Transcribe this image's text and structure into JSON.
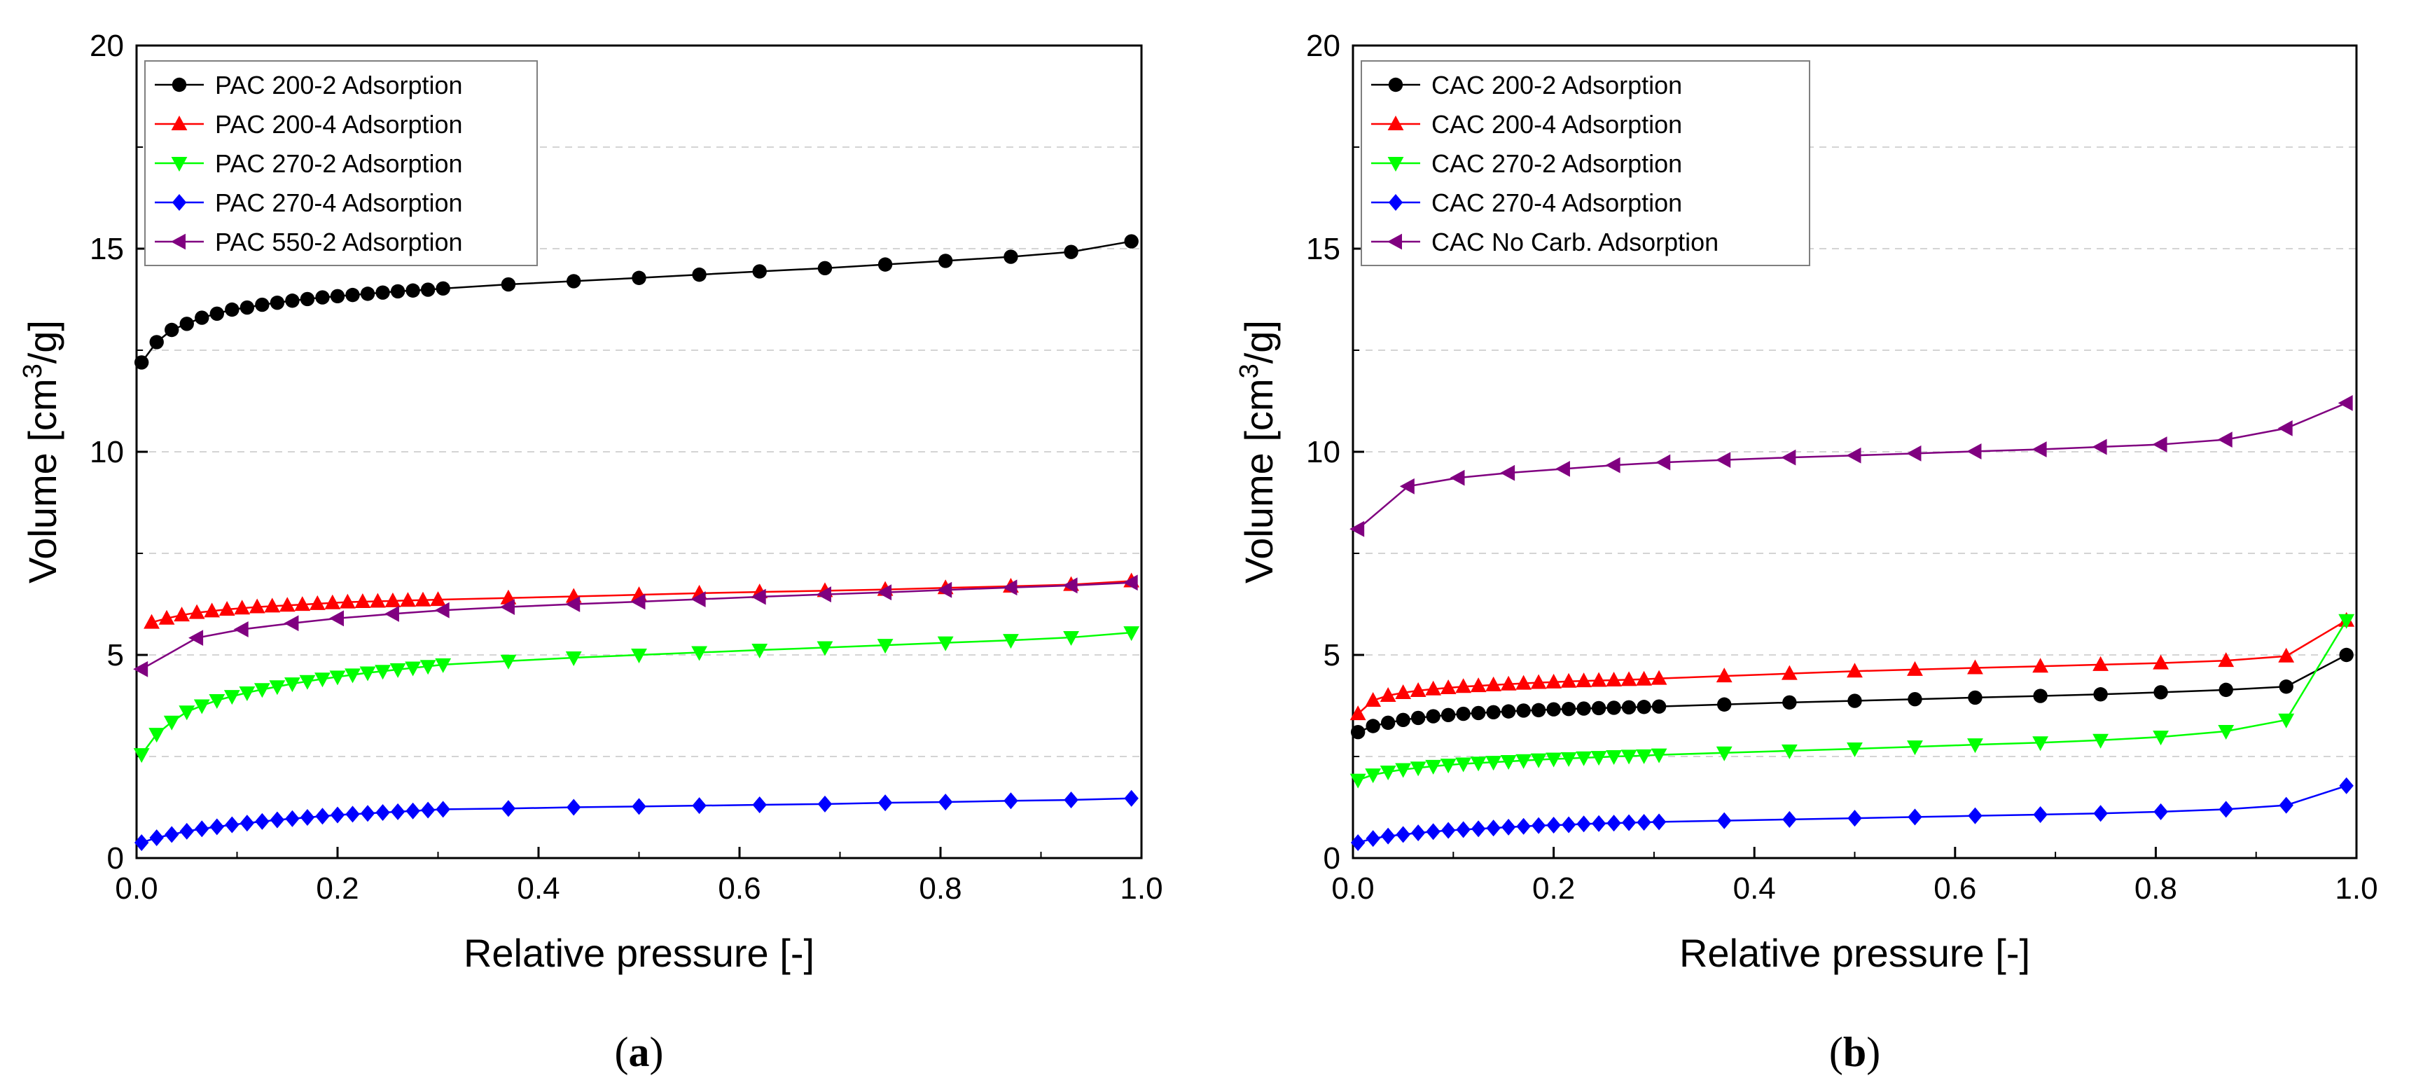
{
  "figure": {
    "panels": [
      "a",
      "b"
    ]
  },
  "chart_data": [
    {
      "type": "line",
      "panel_label": "a",
      "title": "",
      "xlabel": "Relative pressure [-]",
      "ylabel_main": "Volume [cm",
      "ylabel_sup": "3",
      "ylabel_end": "/g]",
      "xlim": [
        0,
        1.0
      ],
      "ylim": [
        0,
        20
      ],
      "xticks": [
        "0.0",
        "0.2",
        "0.4",
        "0.6",
        "0.8",
        "1.0"
      ],
      "yticks": [
        "0",
        "5",
        "10",
        "15",
        "20"
      ],
      "grid": true,
      "legend_position": "top-left",
      "x": [
        0.005,
        0.02,
        0.035,
        0.05,
        0.065,
        0.08,
        0.095,
        0.11,
        0.125,
        0.14,
        0.155,
        0.17,
        0.185,
        0.2,
        0.215,
        0.23,
        0.245,
        0.26,
        0.275,
        0.29,
        0.305,
        0.37,
        0.435,
        0.5,
        0.56,
        0.62,
        0.685,
        0.745,
        0.805,
        0.87,
        0.93,
        0.99
      ],
      "series": [
        {
          "name": "PAC 200-2 Adsorption",
          "color": "#000000",
          "marker": "circle",
          "x": [
            0.005,
            0.02,
            0.035,
            0.05,
            0.065,
            0.08,
            0.095,
            0.11,
            0.125,
            0.14,
            0.155,
            0.17,
            0.185,
            0.2,
            0.215,
            0.23,
            0.245,
            0.26,
            0.275,
            0.29,
            0.305,
            0.37,
            0.435,
            0.5,
            0.56,
            0.62,
            0.685,
            0.745,
            0.805,
            0.87,
            0.93,
            0.99
          ],
          "values": [
            12.2,
            12.7,
            13.0,
            13.15,
            13.3,
            13.4,
            13.5,
            13.55,
            13.62,
            13.67,
            13.72,
            13.76,
            13.8,
            13.83,
            13.86,
            13.89,
            13.92,
            13.95,
            13.97,
            13.99,
            14.02,
            14.12,
            14.2,
            14.28,
            14.36,
            14.44,
            14.52,
            14.61,
            14.7,
            14.8,
            14.92,
            15.18
          ]
        },
        {
          "name": "PAC 200-4 Adsorption",
          "color": "#ff0000",
          "marker": "triangle-up",
          "x": [
            0.015,
            0.03,
            0.045,
            0.06,
            0.075,
            0.09,
            0.105,
            0.12,
            0.135,
            0.15,
            0.165,
            0.18,
            0.195,
            0.21,
            0.225,
            0.24,
            0.255,
            0.27,
            0.285,
            0.3,
            0.37,
            0.435,
            0.5,
            0.56,
            0.62,
            0.685,
            0.745,
            0.805,
            0.87,
            0.93,
            0.99
          ],
          "values": [
            5.8,
            5.9,
            5.98,
            6.04,
            6.08,
            6.12,
            6.15,
            6.18,
            6.2,
            6.22,
            6.24,
            6.26,
            6.28,
            6.3,
            6.31,
            6.32,
            6.33,
            6.34,
            6.35,
            6.36,
            6.4,
            6.44,
            6.48,
            6.52,
            6.55,
            6.58,
            6.61,
            6.65,
            6.69,
            6.73,
            6.82
          ]
        },
        {
          "name": "PAC 270-2 Adsorption",
          "color": "#00ff00",
          "marker": "triangle-down",
          "x": [
            0.005,
            0.02,
            0.035,
            0.05,
            0.065,
            0.08,
            0.095,
            0.11,
            0.125,
            0.14,
            0.155,
            0.17,
            0.185,
            0.2,
            0.215,
            0.23,
            0.245,
            0.26,
            0.275,
            0.29,
            0.305,
            0.37,
            0.435,
            0.5,
            0.56,
            0.62,
            0.685,
            0.745,
            0.805,
            0.87,
            0.93,
            0.99
          ],
          "values": [
            2.55,
            3.05,
            3.35,
            3.6,
            3.75,
            3.88,
            3.98,
            4.07,
            4.15,
            4.22,
            4.29,
            4.35,
            4.41,
            4.46,
            4.51,
            4.56,
            4.6,
            4.64,
            4.68,
            4.72,
            4.76,
            4.85,
            4.93,
            5.0,
            5.06,
            5.12,
            5.18,
            5.24,
            5.3,
            5.36,
            5.43,
            5.55
          ]
        },
        {
          "name": "PAC 270-4 Adsorption",
          "color": "#0000ff",
          "marker": "diamond",
          "x": [
            0.005,
            0.02,
            0.035,
            0.05,
            0.065,
            0.08,
            0.095,
            0.11,
            0.125,
            0.14,
            0.155,
            0.17,
            0.185,
            0.2,
            0.215,
            0.23,
            0.245,
            0.26,
            0.275,
            0.29,
            0.305,
            0.37,
            0.435,
            0.5,
            0.56,
            0.62,
            0.685,
            0.745,
            0.805,
            0.87,
            0.93,
            0.99
          ],
          "values": [
            0.38,
            0.5,
            0.58,
            0.66,
            0.72,
            0.77,
            0.82,
            0.86,
            0.9,
            0.94,
            0.97,
            1.0,
            1.03,
            1.06,
            1.08,
            1.1,
            1.12,
            1.14,
            1.16,
            1.18,
            1.2,
            1.22,
            1.25,
            1.27,
            1.29,
            1.31,
            1.33,
            1.36,
            1.38,
            1.41,
            1.43,
            1.47
          ]
        },
        {
          "name": "PAC 550-2 Adsorption",
          "color": "#800080",
          "marker": "triangle-left",
          "x": [
            0.005,
            0.06,
            0.105,
            0.155,
            0.2,
            0.255,
            0.305,
            0.37,
            0.435,
            0.5,
            0.56,
            0.62,
            0.685,
            0.745,
            0.805,
            0.87,
            0.93,
            0.99
          ],
          "values": [
            4.65,
            5.42,
            5.63,
            5.78,
            5.9,
            6.01,
            6.1,
            6.18,
            6.25,
            6.31,
            6.37,
            6.43,
            6.49,
            6.54,
            6.6,
            6.66,
            6.71,
            6.78
          ]
        }
      ]
    },
    {
      "type": "line",
      "panel_label": "b",
      "title": "",
      "xlabel": "Relative pressure [-]",
      "ylabel_main": "Volume [cm",
      "ylabel_sup": "3",
      "ylabel_end": "/g]",
      "xlim": [
        0,
        1.0
      ],
      "ylim": [
        0,
        20
      ],
      "xticks": [
        "0.0",
        "0.2",
        "0.4",
        "0.6",
        "0.8",
        "1.0"
      ],
      "yticks": [
        "0",
        "5",
        "10",
        "15",
        "20"
      ],
      "grid": true,
      "legend_position": "top-left",
      "series": [
        {
          "name": "CAC 200-2 Adsorption",
          "color": "#000000",
          "marker": "circle",
          "x": [
            0.005,
            0.02,
            0.035,
            0.05,
            0.065,
            0.08,
            0.095,
            0.11,
            0.125,
            0.14,
            0.155,
            0.17,
            0.185,
            0.2,
            0.215,
            0.23,
            0.245,
            0.26,
            0.275,
            0.29,
            0.305,
            0.37,
            0.435,
            0.5,
            0.56,
            0.62,
            0.685,
            0.745,
            0.805,
            0.87,
            0.93,
            0.99
          ],
          "values": [
            3.1,
            3.25,
            3.33,
            3.4,
            3.45,
            3.49,
            3.52,
            3.55,
            3.57,
            3.59,
            3.61,
            3.63,
            3.64,
            3.66,
            3.67,
            3.68,
            3.69,
            3.7,
            3.71,
            3.72,
            3.73,
            3.78,
            3.83,
            3.87,
            3.91,
            3.95,
            3.99,
            4.03,
            4.08,
            4.14,
            4.22,
            5.0
          ]
        },
        {
          "name": "CAC 200-4 Adsorption",
          "color": "#ff0000",
          "marker": "triangle-up",
          "x": [
            0.005,
            0.02,
            0.035,
            0.05,
            0.065,
            0.08,
            0.095,
            0.11,
            0.125,
            0.14,
            0.155,
            0.17,
            0.185,
            0.2,
            0.215,
            0.23,
            0.245,
            0.26,
            0.275,
            0.29,
            0.305,
            0.37,
            0.435,
            0.5,
            0.56,
            0.62,
            0.685,
            0.745,
            0.805,
            0.87,
            0.93,
            0.99
          ],
          "values": [
            3.55,
            3.88,
            4.0,
            4.07,
            4.12,
            4.16,
            4.19,
            4.22,
            4.24,
            4.26,
            4.28,
            4.3,
            4.32,
            4.33,
            4.35,
            4.36,
            4.37,
            4.38,
            4.39,
            4.4,
            4.42,
            4.48,
            4.54,
            4.6,
            4.64,
            4.68,
            4.72,
            4.76,
            4.8,
            4.86,
            4.97,
            5.85
          ]
        },
        {
          "name": "CAC 270-2 Adsorption",
          "color": "#00ff00",
          "marker": "triangle-down",
          "x": [
            0.005,
            0.02,
            0.035,
            0.05,
            0.065,
            0.08,
            0.095,
            0.11,
            0.125,
            0.14,
            0.155,
            0.17,
            0.185,
            0.2,
            0.215,
            0.23,
            0.245,
            0.26,
            0.275,
            0.29,
            0.305,
            0.37,
            0.435,
            0.5,
            0.56,
            0.62,
            0.685,
            0.745,
            0.805,
            0.87,
            0.93,
            0.99
          ],
          "values": [
            1.92,
            2.05,
            2.12,
            2.18,
            2.22,
            2.26,
            2.29,
            2.32,
            2.34,
            2.36,
            2.38,
            2.4,
            2.42,
            2.44,
            2.45,
            2.47,
            2.48,
            2.5,
            2.51,
            2.52,
            2.54,
            2.59,
            2.64,
            2.69,
            2.74,
            2.79,
            2.84,
            2.9,
            2.98,
            3.12,
            3.4,
            5.85
          ]
        },
        {
          "name": "CAC 270-4 Adsorption",
          "color": "#0000ff",
          "marker": "diamond",
          "x": [
            0.005,
            0.02,
            0.035,
            0.05,
            0.065,
            0.08,
            0.095,
            0.11,
            0.125,
            0.14,
            0.155,
            0.17,
            0.185,
            0.2,
            0.215,
            0.23,
            0.245,
            0.26,
            0.275,
            0.29,
            0.305,
            0.37,
            0.435,
            0.5,
            0.56,
            0.62,
            0.685,
            0.745,
            0.805,
            0.87,
            0.93,
            0.99
          ],
          "values": [
            0.38,
            0.48,
            0.54,
            0.58,
            0.62,
            0.65,
            0.68,
            0.7,
            0.72,
            0.74,
            0.76,
            0.78,
            0.8,
            0.81,
            0.82,
            0.84,
            0.85,
            0.86,
            0.87,
            0.88,
            0.89,
            0.92,
            0.95,
            0.98,
            1.01,
            1.04,
            1.07,
            1.1,
            1.14,
            1.2,
            1.3,
            1.78
          ]
        },
        {
          "name": "CAC No Carb. Adsorption",
          "color": "#800080",
          "marker": "triangle-left",
          "x": [
            0.005,
            0.055,
            0.105,
            0.155,
            0.21,
            0.26,
            0.31,
            0.37,
            0.435,
            0.5,
            0.56,
            0.62,
            0.685,
            0.745,
            0.805,
            0.87,
            0.93,
            0.99
          ],
          "values": [
            8.1,
            9.15,
            9.36,
            9.48,
            9.58,
            9.67,
            9.74,
            9.8,
            9.86,
            9.91,
            9.96,
            10.01,
            10.06,
            10.12,
            10.18,
            10.3,
            10.58,
            11.2
          ]
        }
      ]
    }
  ]
}
